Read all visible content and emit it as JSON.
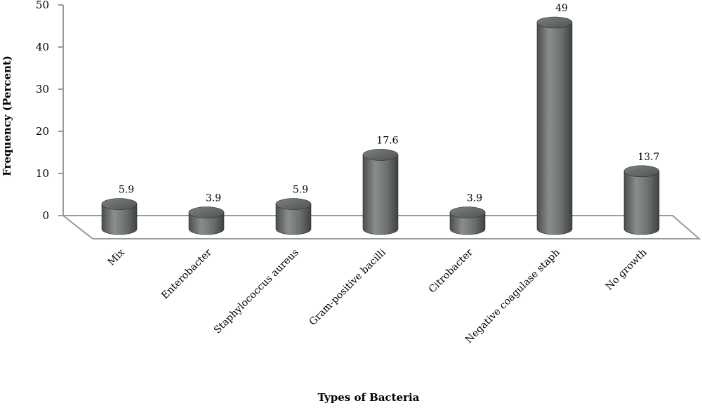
{
  "chart_data": {
    "type": "bar",
    "categories": [
      "Mix",
      "Enterobacter",
      "Staphylococcus aureus",
      "Gram-positive bacilli",
      "Citrobacter",
      "Negative coagulase staph",
      "No growth"
    ],
    "values": [
      5.9,
      3.9,
      5.9,
      17.6,
      3.9,
      49,
      13.7
    ],
    "data_labels": [
      "5.9",
      "3.9",
      "5.9",
      "17.6",
      "3.9",
      "49",
      "13.7"
    ],
    "yticks": [
      "0",
      "10",
      "20",
      "30",
      "40",
      "50"
    ],
    "ylim": [
      0,
      50
    ],
    "xlabel": "Types of Bacteria",
    "ylabel": "Frequency (Percent)",
    "style": "3d-cylinder",
    "bar_color": "#6f7372",
    "grid": false,
    "legend": "none"
  }
}
